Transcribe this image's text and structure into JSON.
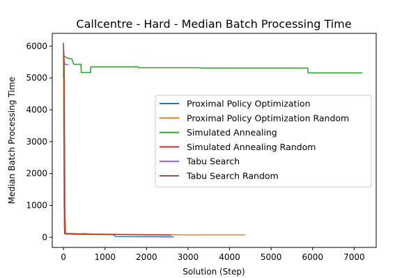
{
  "chart_data": {
    "type": "line",
    "title": "Callcentre - Hard - Median Batch Processing Time",
    "xlabel": "Solution (Step)",
    "ylabel": "Median Batch Processing Time",
    "xlim": [
      -270,
      7530
    ],
    "ylim": [
      -320,
      6400
    ],
    "xticks": [
      0,
      1000,
      2000,
      3000,
      4000,
      5000,
      6000,
      7000
    ],
    "yticks": [
      0,
      1000,
      2000,
      3000,
      4000,
      5000,
      6000
    ],
    "grid": false,
    "legend_position": "center-right",
    "series": [
      {
        "name": "Proximal Policy Optimization",
        "color": "#1f77b4",
        "points": [
          [
            0,
            6000
          ],
          [
            10,
            3000
          ],
          [
            20,
            500
          ],
          [
            30,
            120
          ],
          [
            200,
            100
          ],
          [
            600,
            90
          ],
          [
            1200,
            80
          ],
          [
            1260,
            20
          ],
          [
            2200,
            15
          ],
          [
            2650,
            10
          ]
        ]
      },
      {
        "name": "Proximal Policy Optimization Random",
        "color": "#ff7f0e",
        "points": [
          [
            0,
            5800
          ],
          [
            10,
            2000
          ],
          [
            20,
            300
          ],
          [
            40,
            130
          ],
          [
            300,
            120
          ],
          [
            400,
            110
          ],
          [
            500,
            120
          ],
          [
            700,
            100
          ],
          [
            1500,
            90
          ],
          [
            2500,
            80
          ],
          [
            3500,
            75
          ],
          [
            4380,
            75
          ]
        ]
      },
      {
        "name": "Simulated Annealing",
        "color": "#2ca02c",
        "points": [
          [
            0,
            5000
          ],
          [
            10,
            5700
          ],
          [
            50,
            5650
          ],
          [
            100,
            5620
          ],
          [
            200,
            5600
          ],
          [
            250,
            5430
          ],
          [
            420,
            5430
          ],
          [
            430,
            5170
          ],
          [
            650,
            5170
          ],
          [
            660,
            5350
          ],
          [
            1800,
            5350
          ],
          [
            1810,
            5320
          ],
          [
            3300,
            5320
          ],
          [
            3310,
            5310
          ],
          [
            5880,
            5310
          ],
          [
            5890,
            5160
          ],
          [
            7200,
            5160
          ]
        ]
      },
      {
        "name": "Simulated Annealing Random",
        "color": "#d62728",
        "points": [
          [
            0,
            6100
          ],
          [
            15,
            5000
          ],
          [
            25,
            1000
          ],
          [
            35,
            100
          ],
          [
            300,
            95
          ],
          [
            1000,
            90
          ],
          [
            2000,
            75
          ],
          [
            2600,
            70
          ]
        ]
      },
      {
        "name": "Tabu Search",
        "color": "#9467bd",
        "points": [
          [
            0,
            6000
          ],
          [
            20,
            5500
          ],
          [
            40,
            5420
          ],
          [
            120,
            5420
          ]
        ]
      },
      {
        "name": "Tabu Search Random",
        "color": "#8c564b",
        "points": [
          [
            0,
            6100
          ],
          [
            20,
            5200
          ],
          [
            35,
            800
          ],
          [
            50,
            100
          ],
          [
            150,
            100
          ]
        ]
      }
    ]
  }
}
